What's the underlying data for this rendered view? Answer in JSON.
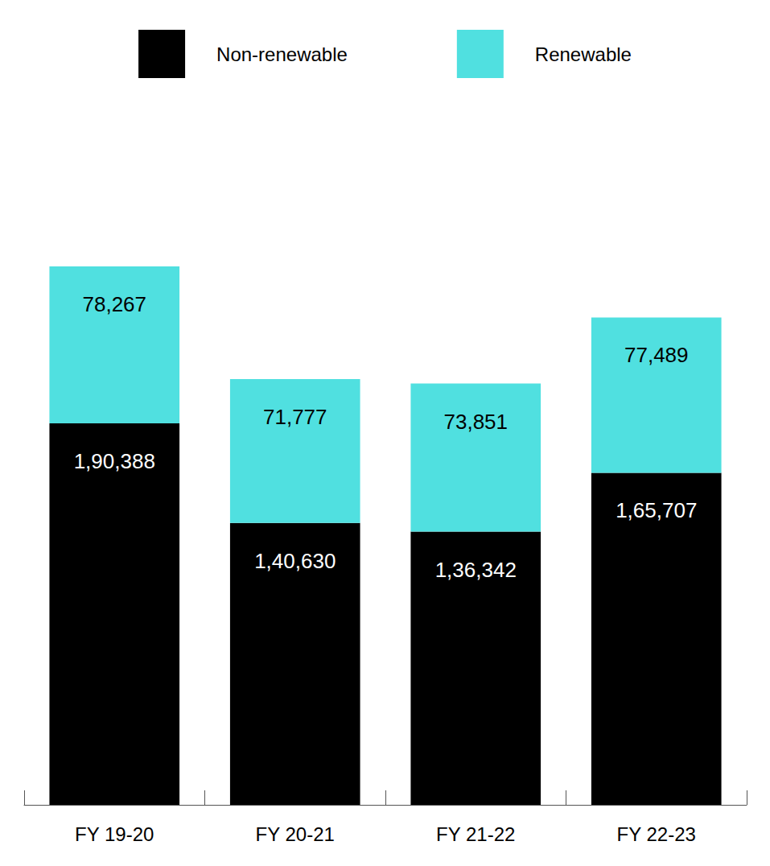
{
  "chart_data": {
    "type": "bar",
    "stacked": true,
    "data_labels": true,
    "tick_labels": "x",
    "grid": false,
    "legend": "top",
    "categories": [
      "FY 19-20",
      "FY 20-21",
      "FY 21-22",
      "FY 22-23"
    ],
    "ylim": [
      0,
      300000
    ],
    "series": [
      {
        "name": "Non-renewable",
        "color": "#000000",
        "values": [
          190388,
          140630,
          136342,
          165707
        ],
        "value_labels": [
          "1,90,388",
          "1,40,630",
          "1,36,342",
          "1,65,707"
        ]
      },
      {
        "name": "Renewable",
        "color": "#50e0e0",
        "values": [
          78267,
          71777,
          73851,
          77489
        ],
        "value_labels": [
          "78,267",
          "71,777",
          "73,851",
          "77,489"
        ]
      }
    ]
  }
}
